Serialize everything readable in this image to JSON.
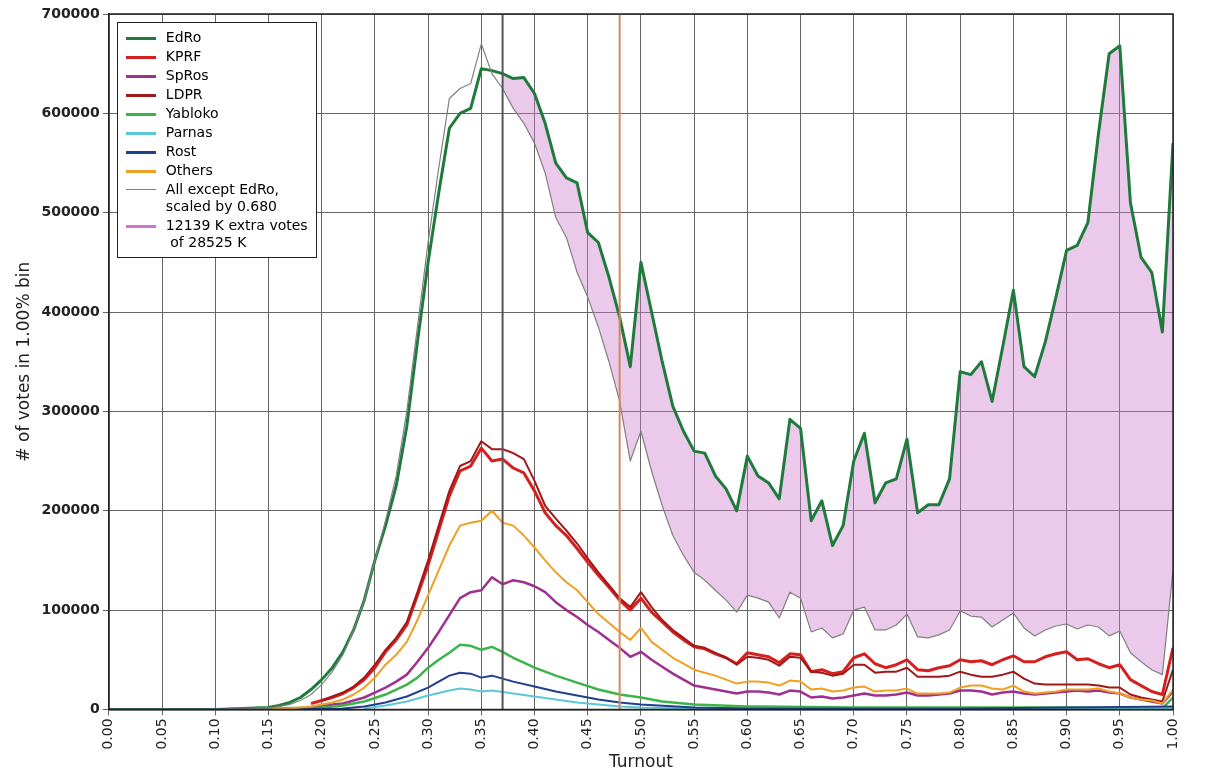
{
  "chart_data": {
    "type": "line",
    "xlabel": "Turnout",
    "ylabel": "# of votes in 1.00% bin",
    "x": [
      0,
      0.1,
      0.15,
      0.16,
      0.17,
      0.18,
      0.19,
      0.2,
      0.21,
      0.22,
      0.23,
      0.24,
      0.25,
      0.26,
      0.27,
      0.28,
      0.29,
      0.3,
      0.31,
      0.32,
      0.33,
      0.34,
      0.35,
      0.36,
      0.37,
      0.38,
      0.39,
      0.4,
      0.41,
      0.42,
      0.43,
      0.44,
      0.45,
      0.46,
      0.47,
      0.48,
      0.49,
      0.5,
      0.51,
      0.52,
      0.53,
      0.54,
      0.55,
      0.56,
      0.57,
      0.58,
      0.59,
      0.6,
      0.61,
      0.62,
      0.63,
      0.64,
      0.65,
      0.66,
      0.67,
      0.68,
      0.69,
      0.7,
      0.71,
      0.72,
      0.73,
      0.74,
      0.75,
      0.76,
      0.77,
      0.78,
      0.79,
      0.8,
      0.81,
      0.82,
      0.83,
      0.84,
      0.85,
      0.86,
      0.87,
      0.88,
      0.89,
      0.9,
      0.91,
      0.92,
      0.93,
      0.94,
      0.95,
      0.96,
      0.97,
      0.98,
      0.99,
      1.0
    ],
    "series": [
      {
        "name": "EdRo",
        "color": "#1e7b3c",
        "values": [
          0,
          0,
          2000,
          4000,
          7000,
          12000,
          20000,
          30000,
          42000,
          58000,
          80000,
          110000,
          150000,
          185000,
          225000,
          285000,
          370000,
          450000,
          520000,
          585000,
          600000,
          605000,
          645000,
          643000,
          640000,
          635000,
          636000,
          620000,
          590000,
          550000,
          535000,
          530000,
          480000,
          470000,
          435000,
          395000,
          345000,
          450000,
          400000,
          350000,
          305000,
          280000,
          260000,
          258000,
          235000,
          222000,
          200000,
          255000,
          235000,
          228000,
          212000,
          292000,
          283000,
          190000,
          210000,
          165000,
          185000,
          250000,
          278000,
          208000,
          228000,
          232000,
          272000,
          198000,
          206000,
          206000,
          232000,
          340000,
          337000,
          350000,
          310000,
          365000,
          422000,
          345000,
          335000,
          370000,
          415000,
          462000,
          467000,
          490000,
          580000,
          660000,
          668000,
          510000,
          455000,
          440000,
          380000,
          570000
        ]
      },
      {
        "name": "KPRF",
        "color": "#d62020",
        "values": [
          null,
          null,
          null,
          null,
          null,
          null,
          6000,
          9000,
          12000,
          16000,
          22000,
          30000,
          42000,
          58000,
          70000,
          85000,
          115000,
          145000,
          180000,
          215000,
          240000,
          245000,
          263000,
          250000,
          252000,
          243000,
          238000,
          220000,
          198000,
          185000,
          175000,
          162000,
          148000,
          135000,
          123000,
          110000,
          100000,
          112000,
          98000,
          88000,
          78000,
          70000,
          63000,
          61000,
          56000,
          52000,
          46000,
          57000,
          55000,
          53000,
          47000,
          56000,
          55000,
          38000,
          40000,
          36000,
          38000,
          52000,
          56000,
          46000,
          42000,
          45000,
          50000,
          40000,
          39000,
          42000,
          44000,
          50000,
          48000,
          49000,
          45000,
          50000,
          54000,
          48000,
          48000,
          53000,
          56000,
          58000,
          50000,
          51000,
          46000,
          42000,
          45000,
          30000,
          24000,
          18000,
          15000,
          62000
        ]
      },
      {
        "name": "SpRos",
        "color": "#a03090",
        "values": [
          null,
          null,
          null,
          null,
          null,
          null,
          2000,
          3000,
          5000,
          6000,
          9000,
          12000,
          17000,
          22000,
          28000,
          35000,
          48000,
          62000,
          78000,
          95000,
          112000,
          118000,
          120000,
          133000,
          126000,
          130000,
          128000,
          124000,
          118000,
          108000,
          100000,
          93000,
          85000,
          78000,
          70000,
          62000,
          53000,
          58000,
          50000,
          43000,
          36000,
          30000,
          24000,
          22000,
          20000,
          18000,
          16000,
          18000,
          18000,
          17000,
          15000,
          19000,
          18000,
          12000,
          13000,
          11000,
          12000,
          14000,
          16000,
          14000,
          14000,
          15000,
          17000,
          14000,
          14000,
          15000,
          16000,
          19000,
          19000,
          18000,
          15000,
          17000,
          18000,
          16000,
          15000,
          16000,
          17000,
          18000,
          19000,
          18000,
          19000,
          17000,
          16000,
          12000,
          10000,
          8000,
          6000,
          18000
        ]
      },
      {
        "name": "LDPR",
        "color": "#a01818",
        "values": [
          null,
          null,
          null,
          null,
          null,
          null,
          null,
          9000,
          13000,
          17000,
          23000,
          32000,
          45000,
          60000,
          72000,
          88000,
          118000,
          150000,
          185000,
          220000,
          245000,
          250000,
          270000,
          262000,
          262000,
          258000,
          252000,
          230000,
          205000,
          192000,
          180000,
          167000,
          152000,
          138000,
          125000,
          112000,
          103000,
          118000,
          103000,
          90000,
          80000,
          72000,
          64000,
          62000,
          57000,
          52000,
          45000,
          53000,
          52000,
          50000,
          44000,
          53000,
          52000,
          38000,
          37000,
          34000,
          36000,
          45000,
          45000,
          37000,
          38000,
          38000,
          42000,
          33000,
          33000,
          33000,
          34000,
          38000,
          35000,
          33000,
          33000,
          35000,
          38000,
          31000,
          26000,
          25000,
          25000,
          25000,
          25000,
          25000,
          24000,
          22000,
          22000,
          15000,
          12000,
          10000,
          8000,
          40000
        ]
      },
      {
        "name": "Yabloko",
        "color": "#3cb44b",
        "x": [
          0,
          0.1,
          0.2,
          0.22,
          0.24,
          0.26,
          0.28,
          0.29,
          0.3,
          0.31,
          0.32,
          0.33,
          0.34,
          0.35,
          0.36,
          0.37,
          0.38,
          0.39,
          0.4,
          0.42,
          0.44,
          0.46,
          0.48,
          0.5,
          0.52,
          0.55,
          0.6,
          0.7,
          0.8,
          0.9,
          0.99,
          1.0
        ],
        "values": [
          0,
          0,
          2000,
          4000,
          8000,
          15000,
          25000,
          32000,
          42000,
          50000,
          57000,
          65000,
          64000,
          60000,
          63000,
          58000,
          52000,
          47000,
          42000,
          34000,
          27000,
          20000,
          15000,
          12000,
          8000,
          5000,
          3000,
          2000,
          2000,
          2000,
          1000,
          12000
        ]
      },
      {
        "name": "Parnas",
        "color": "#5ac8d8",
        "x": [
          0.24,
          0.26,
          0.28,
          0.3,
          0.32,
          0.33,
          0.34,
          0.35,
          0.36,
          0.38,
          0.4,
          0.42,
          0.44,
          0.46,
          0.48,
          0.5,
          0.55,
          0.99,
          1.0
        ],
        "values": [
          1000,
          4000,
          8000,
          14000,
          19000,
          21000,
          20000,
          18000,
          19000,
          16000,
          13000,
          10000,
          7000,
          5000,
          3000,
          2000,
          1000,
          1000,
          2000
        ]
      },
      {
        "name": "Rost",
        "color": "#1f3f8f",
        "x": [
          0,
          0.1,
          0.22,
          0.24,
          0.26,
          0.28,
          0.3,
          0.31,
          0.32,
          0.33,
          0.34,
          0.35,
          0.36,
          0.37,
          0.38,
          0.4,
          0.42,
          0.44,
          0.46,
          0.48,
          0.5,
          0.55,
          0.6,
          0.8,
          1.0
        ],
        "values": [
          0,
          0,
          1000,
          3000,
          7000,
          13000,
          22000,
          28000,
          34000,
          37000,
          36000,
          32000,
          34000,
          31000,
          28000,
          23000,
          18000,
          14000,
          10000,
          7000,
          5000,
          2000,
          1000,
          1000,
          3000
        ]
      },
      {
        "name": "Others",
        "color": "#f0a020",
        "values": [
          null,
          null,
          0,
          1000,
          1000,
          2000,
          3000,
          5000,
          7000,
          10000,
          15000,
          22000,
          32000,
          45000,
          55000,
          68000,
          90000,
          115000,
          140000,
          165000,
          185000,
          188000,
          190000,
          200000,
          188000,
          185000,
          175000,
          163000,
          150000,
          138000,
          128000,
          120000,
          108000,
          96000,
          87000,
          78000,
          70000,
          82000,
          68000,
          60000,
          52000,
          46000,
          40000,
          37000,
          34000,
          30000,
          26000,
          28000,
          28000,
          27000,
          24000,
          29000,
          28000,
          20000,
          21000,
          18000,
          19000,
          22000,
          23000,
          18000,
          19000,
          19000,
          21000,
          16000,
          16000,
          16000,
          17000,
          22000,
          24000,
          24000,
          21000,
          20000,
          24000,
          18000,
          16000,
          17000,
          18000,
          20000,
          20000,
          20000,
          21000,
          18000,
          16000,
          12000,
          10000,
          9000,
          6000,
          20000
        ]
      },
      {
        "name": "12139 K extra votes\n of 28525 K",
        "type": "area",
        "color": "#cc77cc",
        "x": [
          0.37,
          0.38,
          0.39,
          0.4,
          0.41,
          0.42,
          0.43,
          0.44,
          0.45,
          0.46,
          0.47,
          0.48,
          0.49,
          0.5,
          0.51,
          0.52,
          0.53,
          0.54,
          0.55,
          0.56,
          0.57,
          0.58,
          0.59,
          0.6,
          0.61,
          0.62,
          0.63,
          0.64,
          0.65,
          0.66,
          0.67,
          0.68,
          0.69,
          0.7,
          0.71,
          0.72,
          0.73,
          0.74,
          0.75,
          0.76,
          0.77,
          0.78,
          0.79,
          0.8,
          0.81,
          0.82,
          0.83,
          0.84,
          0.85,
          0.86,
          0.87,
          0.88,
          0.89,
          0.9,
          0.91,
          0.92,
          0.93,
          0.94,
          0.95,
          0.96,
          0.97,
          0.98,
          0.99,
          1.0
        ],
        "values": [
          640000,
          635000,
          636000,
          620000,
          590000,
          550000,
          535000,
          530000,
          480000,
          470000,
          435000,
          395000,
          345000,
          450000,
          400000,
          350000,
          305000,
          280000,
          260000,
          258000,
          235000,
          222000,
          200000,
          255000,
          235000,
          228000,
          212000,
          292000,
          283000,
          190000,
          210000,
          165000,
          185000,
          250000,
          278000,
          208000,
          228000,
          232000,
          272000,
          198000,
          206000,
          206000,
          232000,
          340000,
          337000,
          350000,
          310000,
          365000,
          422000,
          345000,
          335000,
          370000,
          415000,
          462000,
          467000,
          490000,
          580000,
          660000,
          668000,
          510000,
          455000,
          440000,
          380000,
          570000
        ]
      },
      {
        "name": "All except EdRo,\nscaled by 0.680",
        "color": "#808080",
        "values": [
          0,
          0,
          1000,
          3000,
          5000,
          9000,
          15000,
          25000,
          38000,
          55000,
          80000,
          110000,
          150000,
          190000,
          235000,
          300000,
          385000,
          470000,
          545000,
          615000,
          625000,
          630000,
          670000,
          640000,
          625000,
          605000,
          590000,
          570000,
          540000,
          495000,
          475000,
          440000,
          415000,
          385000,
          350000,
          310000,
          250000,
          280000,
          240000,
          205000,
          175000,
          155000,
          138000,
          130000,
          120000,
          110000,
          98000,
          115000,
          112000,
          108000,
          92000,
          118000,
          112000,
          78000,
          82000,
          72000,
          76000,
          100000,
          103000,
          80000,
          80000,
          85000,
          96000,
          73000,
          72000,
          75000,
          80000,
          99000,
          94000,
          93000,
          83000,
          90000,
          97000,
          82000,
          74000,
          80000,
          84000,
          86000,
          81000,
          85000,
          83000,
          74000,
          79000,
          57000,
          48000,
          40000,
          35000,
          140000
        ]
      }
    ],
    "xlim": [
      0,
      1
    ],
    "xticks": [
      {
        "value": 0,
        "label": "0.00"
      },
      {
        "value": 0.05,
        "label": "0.05"
      },
      {
        "value": 0.1,
        "label": "0.10"
      },
      {
        "value": 0.15,
        "label": "0.15"
      },
      {
        "value": 0.2,
        "label": "0.20"
      },
      {
        "value": 0.25,
        "label": "0.25"
      },
      {
        "value": 0.3,
        "label": "0.30"
      },
      {
        "value": 0.35,
        "label": "0.35"
      },
      {
        "value": 0.4,
        "label": "0.40"
      },
      {
        "value": 0.45,
        "label": "0.45"
      },
      {
        "value": 0.5,
        "label": "0.50"
      },
      {
        "value": 0.55,
        "label": "0.55"
      },
      {
        "value": 0.6,
        "label": "0.60"
      },
      {
        "value": 0.65,
        "label": "0.65"
      },
      {
        "value": 0.7,
        "label": "0.70"
      },
      {
        "value": 0.75,
        "label": "0.75"
      },
      {
        "value": 0.8,
        "label": "0.80"
      },
      {
        "value": 0.85,
        "label": "0.85"
      },
      {
        "value": 0.9,
        "label": "0.90"
      },
      {
        "value": 0.95,
        "label": "0.95"
      },
      {
        "value": 1,
        "label": "1.00"
      }
    ],
    "ylim": [
      0,
      700000
    ],
    "yticks": [
      0,
      100000,
      200000,
      300000,
      400000,
      500000,
      600000,
      700000
    ],
    "ref_lines": [
      {
        "axis": "x",
        "value": 0.37,
        "color": "#555555"
      },
      {
        "axis": "x",
        "value": 0.48,
        "color": "#d08a60"
      }
    ],
    "grid": true,
    "legend": "top left",
    "line_style": "solid",
    "marker": "none"
  }
}
